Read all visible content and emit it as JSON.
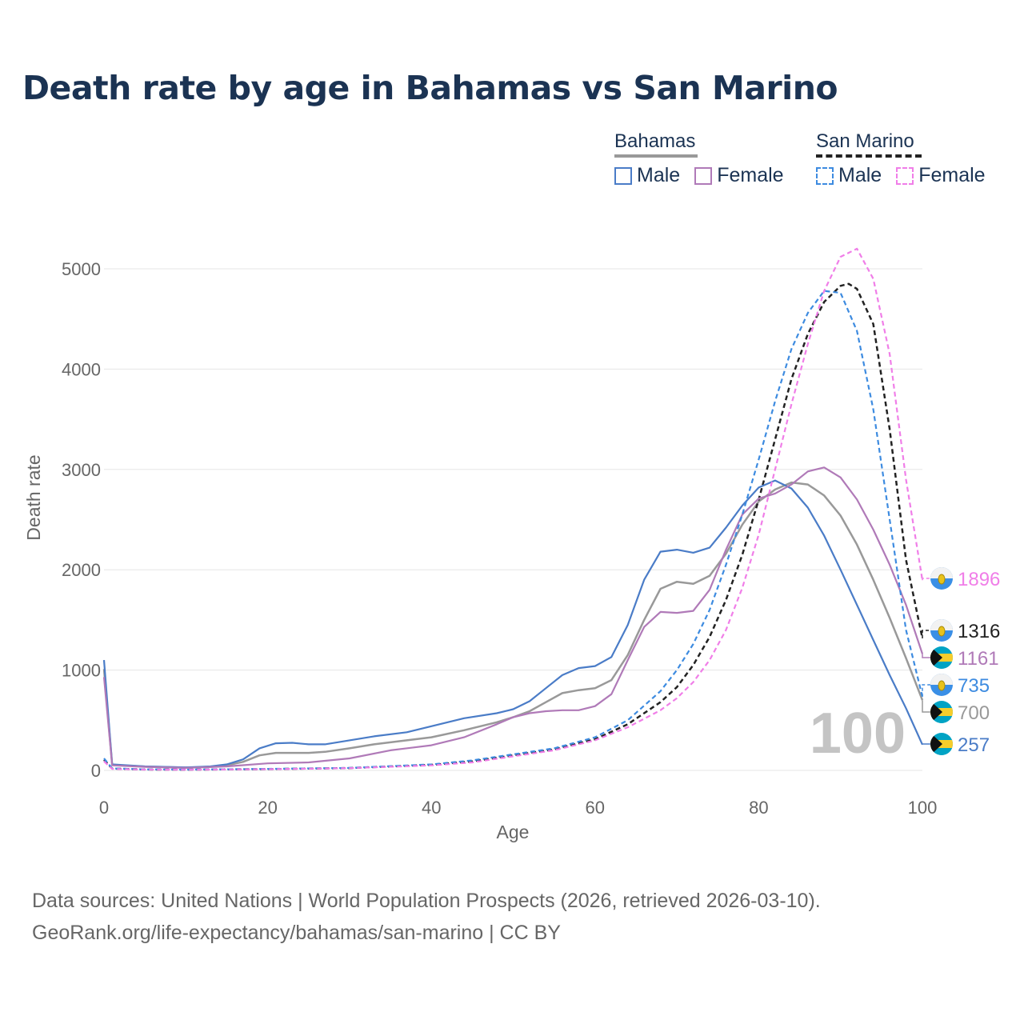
{
  "title": "Death rate by age in Bahamas vs San Marino",
  "legend": {
    "groups": [
      {
        "name": "Bahamas",
        "line_color": "#999999",
        "dashed": false,
        "items": [
          {
            "label": "Male",
            "color": "#4a7cc7"
          },
          {
            "label": "Female",
            "color": "#b07ab8"
          }
        ]
      },
      {
        "name": "San Marino",
        "line_color": "#222222",
        "dashed": true,
        "items": [
          {
            "label": "Male",
            "color": "#3d8be0"
          },
          {
            "label": "Female",
            "color": "#f07ee8"
          }
        ]
      }
    ]
  },
  "source": {
    "line1": "Data sources: United Nations | World Population Prospects (2026, retrieved 2026-03-10).",
    "line2": "GeoRank.org/life-expectancy/bahamas/san-marino | CC BY"
  },
  "chart_data": {
    "type": "line",
    "title": "Death rate by age in Bahamas vs San Marino",
    "xlabel": "Age",
    "ylabel": "Death rate",
    "xlim": [
      0,
      100
    ],
    "ylim": [
      0,
      5000
    ],
    "x_ticks": [
      0,
      20,
      40,
      60,
      80,
      100
    ],
    "y_ticks": [
      0,
      1000,
      2000,
      3000,
      4000,
      5000
    ],
    "current_age_label": "100",
    "series": [
      {
        "name": "Bahamas Male",
        "country": "Bahamas",
        "sex": "Male",
        "color": "#4a7cc7",
        "dashed": false,
        "end_label": "257",
        "x": [
          0,
          1,
          5,
          10,
          13,
          15,
          17,
          19,
          21,
          23,
          25,
          27,
          30,
          33,
          37,
          40,
          44,
          48,
          50,
          52,
          54,
          56,
          58,
          60,
          62,
          64,
          66,
          68,
          70,
          72,
          74,
          76,
          78,
          80,
          82,
          84,
          86,
          88,
          90,
          92,
          94,
          96,
          98,
          100
        ],
        "y": [
          1100,
          60,
          40,
          30,
          40,
          60,
          110,
          220,
          270,
          275,
          260,
          260,
          300,
          340,
          380,
          440,
          520,
          570,
          610,
          690,
          820,
          950,
          1020,
          1040,
          1130,
          1450,
          1900,
          2180,
          2200,
          2170,
          2220,
          2420,
          2640,
          2820,
          2890,
          2810,
          2620,
          2340,
          2000,
          1650,
          1300,
          950,
          620,
          257
        ]
      },
      {
        "name": "Bahamas Female",
        "country": "Bahamas",
        "sex": "Female",
        "color": "#b07ab8",
        "dashed": false,
        "end_label": "1161",
        "x": [
          0,
          1,
          5,
          10,
          15,
          20,
          25,
          30,
          35,
          40,
          44,
          48,
          50,
          52,
          54,
          56,
          58,
          60,
          62,
          64,
          66,
          68,
          70,
          72,
          74,
          76,
          78,
          80,
          82,
          84,
          86,
          88,
          90,
          92,
          94,
          96,
          98,
          100
        ],
        "y": [
          930,
          50,
          35,
          25,
          40,
          70,
          80,
          120,
          200,
          250,
          330,
          460,
          530,
          570,
          590,
          600,
          600,
          640,
          760,
          1100,
          1430,
          1580,
          1570,
          1590,
          1800,
          2200,
          2550,
          2710,
          2760,
          2850,
          2980,
          3020,
          2920,
          2700,
          2400,
          2050,
          1650,
          1161
        ]
      },
      {
        "name": "San Marino Male",
        "country": "San Marino",
        "sex": "Male",
        "color": "#3d8be0",
        "dashed": true,
        "end_label": "735",
        "x": [
          0,
          1,
          5,
          10,
          20,
          30,
          40,
          45,
          50,
          55,
          60,
          64,
          68,
          70,
          72,
          74,
          76,
          78,
          80,
          82,
          84,
          86,
          88,
          90,
          92,
          94,
          96,
          98,
          100
        ],
        "y": [
          120,
          20,
          10,
          8,
          15,
          25,
          60,
          100,
          160,
          220,
          330,
          500,
          790,
          1000,
          1260,
          1600,
          2050,
          2550,
          3100,
          3680,
          4200,
          4560,
          4780,
          4760,
          4380,
          3600,
          2500,
          1400,
          735
        ]
      },
      {
        "name": "San Marino Female",
        "country": "San Marino",
        "sex": "Female",
        "color": "#f07ee8",
        "dashed": true,
        "end_label": "1896",
        "x": [
          0,
          1,
          5,
          10,
          20,
          30,
          40,
          45,
          50,
          55,
          60,
          64,
          68,
          70,
          72,
          74,
          76,
          78,
          80,
          82,
          84,
          86,
          88,
          90,
          92,
          94,
          96,
          98,
          100
        ],
        "y": [
          90,
          15,
          8,
          6,
          12,
          22,
          50,
          80,
          140,
          200,
          300,
          430,
          600,
          720,
          880,
          1100,
          1400,
          1820,
          2350,
          3000,
          3650,
          4250,
          4780,
          5120,
          5200,
          4900,
          4150,
          2900,
          1896
        ]
      }
    ],
    "overall_series": [
      {
        "name": "Bahamas (both sexes)",
        "color": "#999999",
        "dashed": false,
        "end_label": "700",
        "x": [
          0,
          1,
          5,
          10,
          13,
          15,
          17,
          19,
          21,
          23,
          25,
          27,
          30,
          33,
          37,
          40,
          44,
          48,
          50,
          52,
          54,
          56,
          58,
          60,
          62,
          64,
          66,
          68,
          70,
          72,
          74,
          76,
          78,
          80,
          82,
          84,
          86,
          88,
          90,
          92,
          94,
          96,
          98,
          100
        ],
        "y": [
          1010,
          55,
          38,
          28,
          35,
          50,
          85,
          150,
          175,
          175,
          175,
          185,
          220,
          260,
          300,
          330,
          400,
          480,
          530,
          590,
          680,
          770,
          800,
          820,
          900,
          1150,
          1500,
          1810,
          1880,
          1860,
          1940,
          2160,
          2450,
          2680,
          2800,
          2870,
          2850,
          2740,
          2540,
          2250,
          1900,
          1520,
          1120,
          700
        ]
      },
      {
        "name": "San Marino (both sexes)",
        "color": "#222222",
        "dashed": true,
        "end_label": "1316",
        "x": [
          0,
          1,
          5,
          10,
          20,
          30,
          40,
          45,
          50,
          55,
          60,
          64,
          68,
          70,
          72,
          74,
          76,
          78,
          80,
          82,
          84,
          86,
          88,
          90,
          91,
          92,
          94,
          96,
          98,
          100
        ],
        "y": [
          105,
          18,
          9,
          7,
          13,
          23,
          55,
          90,
          150,
          210,
          310,
          460,
          680,
          830,
          1050,
          1330,
          1700,
          2150,
          2700,
          3300,
          3900,
          4350,
          4670,
          4830,
          4850,
          4800,
          4450,
          3400,
          2100,
          1316
        ]
      }
    ],
    "end_markers": [
      {
        "label": "1896",
        "flag": "San Marino",
        "color": "#f07ee8"
      },
      {
        "label": "1316",
        "flag": "San Marino",
        "color": "#222222"
      },
      {
        "label": "1161",
        "flag": "Bahamas",
        "color": "#b07ab8"
      },
      {
        "label": "735",
        "flag": "San Marino",
        "color": "#3d8be0"
      },
      {
        "label": "700",
        "flag": "Bahamas",
        "color": "#999999"
      },
      {
        "label": "257",
        "flag": "Bahamas",
        "color": "#4a7cc7"
      }
    ]
  }
}
